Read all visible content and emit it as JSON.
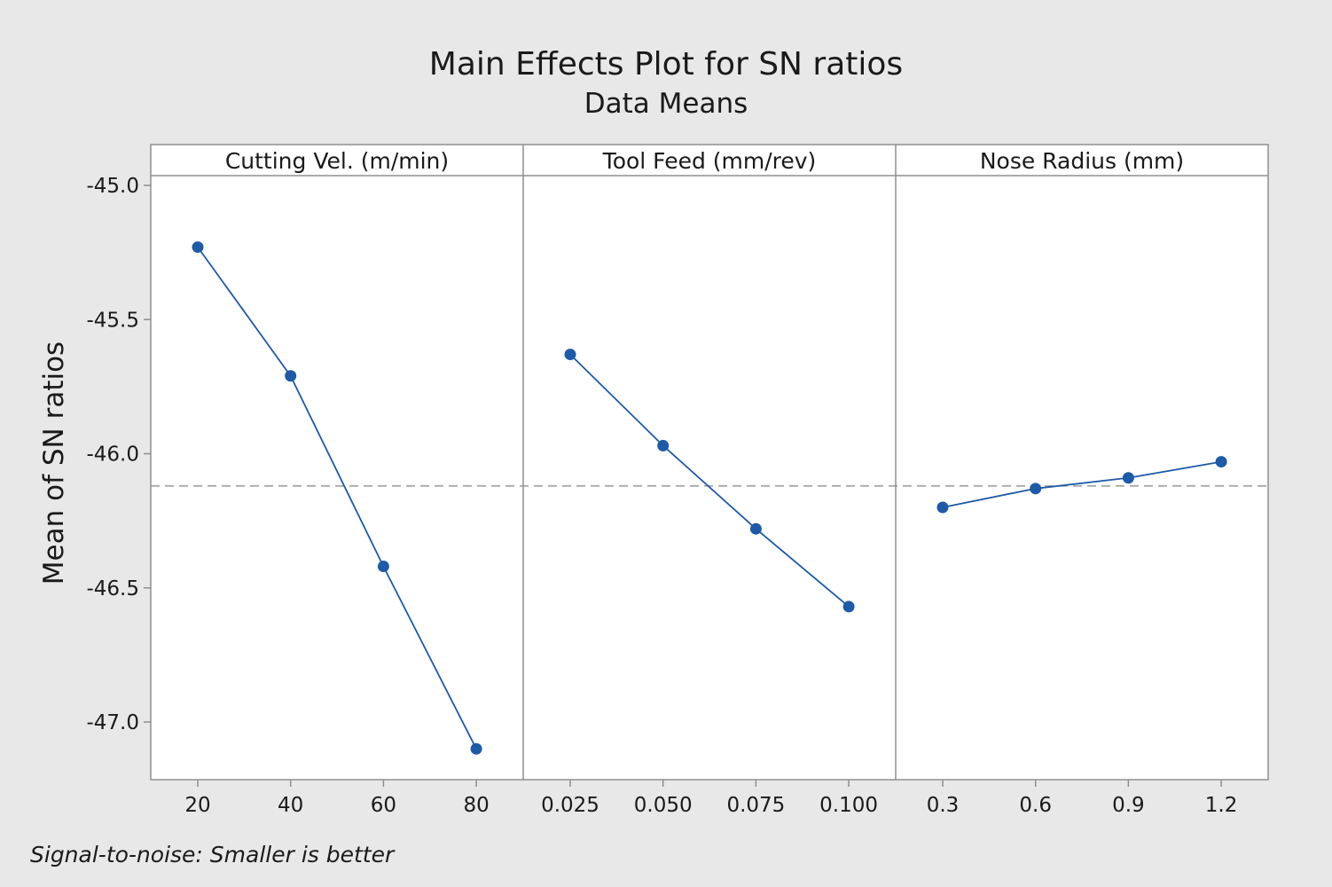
{
  "chart_data": {
    "type": "line",
    "title": "Main Effects Plot for SN ratios",
    "subtitle": "Data Means",
    "ylabel": "Mean of SN ratios",
    "ylim": [
      -47.2,
      -44.95
    ],
    "yticks": [
      "-45.0",
      "-45.5",
      "-46.0",
      "-46.5",
      "-47.0"
    ],
    "ytick_values": [
      -45.0,
      -45.5,
      -46.0,
      -46.5,
      -47.0
    ],
    "reference_mean": -46.12,
    "footnote": "Signal-to-noise: Smaller is better",
    "colors": {
      "series": "#1d5aa8",
      "reference": "#a9a9a9",
      "frame": "#8f8f8f",
      "plot_bg": "#ffffff"
    },
    "panels": [
      {
        "name": "Cutting Vel. (m/min)",
        "categories": [
          "20",
          "40",
          "60",
          "80"
        ],
        "values": [
          -45.23,
          -45.71,
          -46.42,
          -47.1
        ]
      },
      {
        "name": "Tool Feed (mm/rev)",
        "categories": [
          "0.025",
          "0.050",
          "0.075",
          "0.100"
        ],
        "values": [
          -45.63,
          -45.97,
          -46.28,
          -46.57
        ]
      },
      {
        "name": "Nose Radius (mm)",
        "categories": [
          "0.3",
          "0.6",
          "0.9",
          "1.2"
        ],
        "values": [
          -46.2,
          -46.13,
          -46.09,
          -46.03
        ]
      }
    ]
  }
}
